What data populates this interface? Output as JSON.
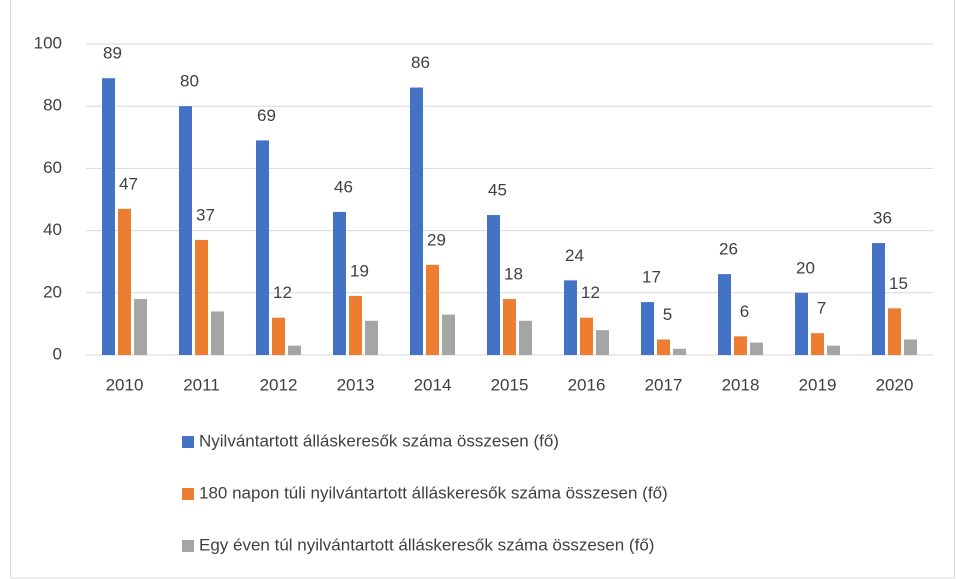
{
  "chart_data": {
    "type": "bar",
    "categories": [
      "2010",
      "2011",
      "2012",
      "2013",
      "2014",
      "2015",
      "2016",
      "2017",
      "2018",
      "2019",
      "2020"
    ],
    "series": [
      {
        "name": "Nyilvántartott álláskeresők száma összesen (fő)",
        "color": "#4472c4",
        "data_labels": true,
        "values": [
          89,
          80,
          69,
          46,
          86,
          45,
          24,
          17,
          26,
          20,
          36
        ]
      },
      {
        "name": "180 napon túli nyilvántartott álláskeresők száma összesen (fő)",
        "color": "#ed7d31",
        "data_labels": true,
        "values": [
          47,
          37,
          12,
          19,
          29,
          18,
          12,
          5,
          6,
          7,
          15
        ]
      },
      {
        "name": "Egy éven túl nyilvántartott álláskeresők száma összesen (fő)",
        "color": "#a5a5a5",
        "data_labels": false,
        "values": [
          18,
          14,
          3,
          11,
          13,
          11,
          8,
          2,
          4,
          3,
          5
        ]
      }
    ],
    "ylim": [
      0,
      100
    ],
    "yticks": [
      0,
      20,
      40,
      60,
      80,
      100
    ],
    "grid": true,
    "legend": "bottom"
  }
}
